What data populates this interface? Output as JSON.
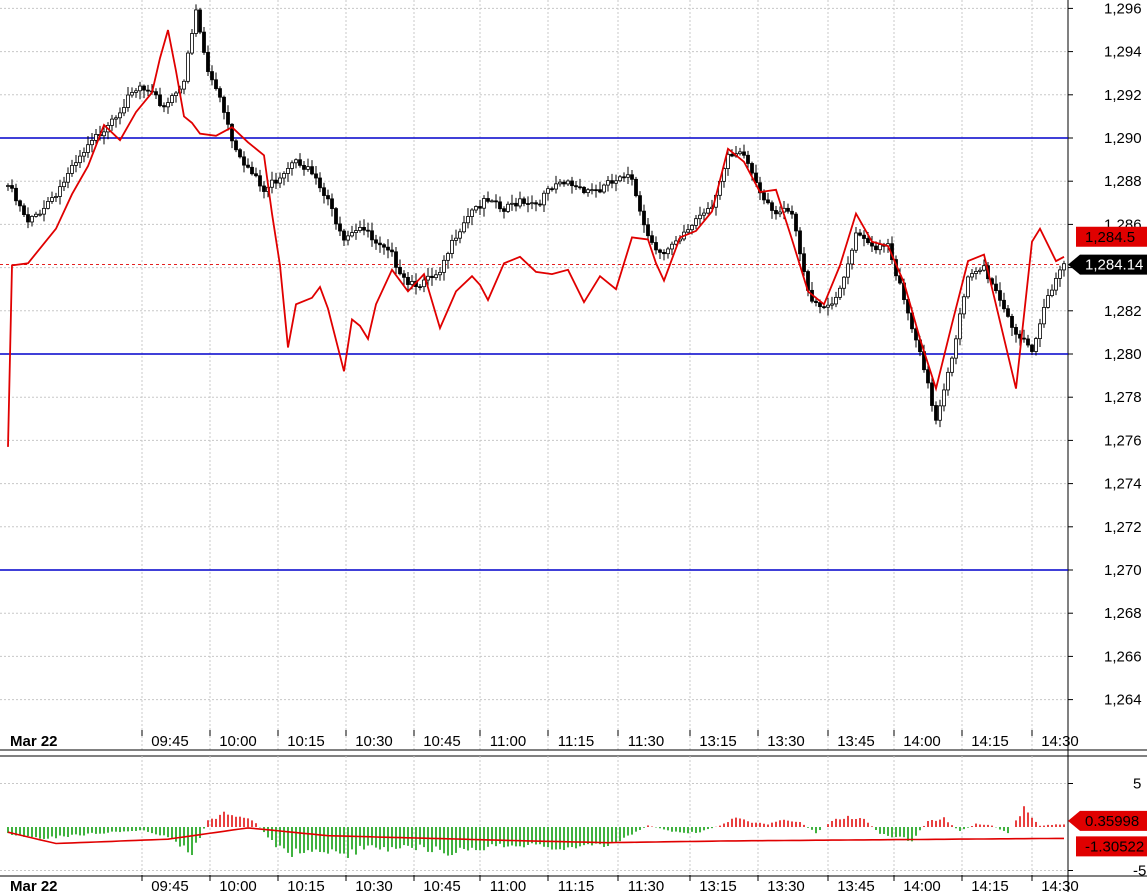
{
  "chart_data": [
    {
      "type": "candlestick",
      "date_label": "Mar 22",
      "x_ticks": [
        "09:45",
        "10:00",
        "10:15",
        "10:30",
        "10:45",
        "11:00",
        "11:15",
        "11:30",
        "13:15",
        "13:30",
        "13:45",
        "14:00",
        "14:15",
        "14:30"
      ],
      "y_ticks": [
        "1,264",
        "1,266",
        "1,268",
        "1,270",
        "1,272",
        "1,274",
        "1,276",
        "1,278",
        "1,280",
        "1,282",
        "1,284",
        "1,286",
        "1,288",
        "1,290",
        "1,292",
        "1,294",
        "1,296"
      ],
      "ylim": [
        1263.0,
        1296.5
      ],
      "grid": true,
      "horizontal_lines": [
        1290,
        1280,
        1270
      ],
      "current_price_label": "1,284.14",
      "current_price": 1284.14,
      "overlay_label": "1,284.5",
      "overlay_value": 1284.5,
      "candle_anchors": [
        [
          0,
          1287.8
        ],
        [
          5,
          1286.0
        ],
        [
          12,
          1287.5
        ],
        [
          20,
          1289.5
        ],
        [
          26,
          1291.0
        ],
        [
          33,
          1292.3
        ],
        [
          39,
          1291.5
        ],
        [
          44,
          1292.7
        ],
        [
          47,
          1295.8
        ],
        [
          50,
          1293.0
        ],
        [
          53,
          1292.0
        ],
        [
          56,
          1290.0
        ],
        [
          60,
          1288.6
        ],
        [
          64,
          1287.5
        ],
        [
          68,
          1288.3
        ],
        [
          72,
          1289.2
        ],
        [
          76,
          1288.3
        ],
        [
          80,
          1287.0
        ],
        [
          84,
          1285.5
        ],
        [
          88,
          1286.0
        ],
        [
          92,
          1285.0
        ],
        [
          96,
          1284.5
        ],
        [
          100,
          1283.4
        ],
        [
          104,
          1283.3
        ],
        [
          108,
          1283.6
        ],
        [
          112,
          1285.6
        ],
        [
          116,
          1286.8
        ],
        [
          120,
          1287.0
        ],
        [
          124,
          1286.6
        ],
        [
          128,
          1287.2
        ],
        [
          132,
          1287.0
        ],
        [
          136,
          1287.6
        ],
        [
          140,
          1287.9
        ],
        [
          144,
          1287.7
        ],
        [
          148,
          1287.6
        ],
        [
          152,
          1288.0
        ],
        [
          156,
          1288.1
        ],
        [
          160,
          1285.5
        ],
        [
          164,
          1284.6
        ],
        [
          168,
          1285.2
        ],
        [
          172,
          1286.3
        ],
        [
          176,
          1287.0
        ],
        [
          180,
          1289.0
        ],
        [
          184,
          1289.2
        ],
        [
          188,
          1287.6
        ],
        [
          192,
          1286.6
        ],
        [
          196,
          1286.4
        ],
        [
          200,
          1282.8
        ],
        [
          204,
          1282.2
        ],
        [
          208,
          1282.8
        ],
        [
          212,
          1285.4
        ],
        [
          216,
          1285.0
        ],
        [
          220,
          1285.2
        ],
        [
          224,
          1282.4
        ],
        [
          228,
          1279.9
        ],
        [
          232,
          1277.0
        ],
        [
          236,
          1280.0
        ],
        [
          240,
          1283.4
        ],
        [
          244,
          1284.0
        ],
        [
          248,
          1282.6
        ],
        [
          252,
          1281.0
        ],
        [
          256,
          1279.9
        ],
        [
          260,
          1282.8
        ],
        [
          262,
          1283.6
        ],
        [
          264,
          1284.2
        ]
      ],
      "series": [
        {
          "name": "",
          "color": "#e00000",
          "points": [
            [
              0,
              1275.7
            ],
            [
              1,
              1284.1
            ],
            [
              5,
              1284.2
            ],
            [
              12,
              1285.8
            ],
            [
              16,
              1287.4
            ],
            [
              20,
              1288.7
            ],
            [
              24,
              1290.6
            ],
            [
              28,
              1289.9
            ],
            [
              32,
              1291.2
            ],
            [
              36,
              1292.1
            ],
            [
              38,
              1293.7
            ],
            [
              40,
              1295.0
            ],
            [
              42,
              1293.1
            ],
            [
              44,
              1291.0
            ],
            [
              46,
              1290.7
            ],
            [
              48,
              1290.2
            ],
            [
              52,
              1290.1
            ],
            [
              56,
              1290.5
            ],
            [
              60,
              1289.8
            ],
            [
              64,
              1289.2
            ],
            [
              66,
              1286.5
            ],
            [
              68,
              1284.1
            ],
            [
              70,
              1280.3
            ],
            [
              72,
              1282.3
            ],
            [
              76,
              1282.6
            ],
            [
              78,
              1283.1
            ],
            [
              80,
              1282.1
            ],
            [
              84,
              1279.2
            ],
            [
              86,
              1281.6
            ],
            [
              88,
              1281.3
            ],
            [
              90,
              1280.7
            ],
            [
              92,
              1282.3
            ],
            [
              96,
              1283.9
            ],
            [
              100,
              1282.9
            ],
            [
              104,
              1283.7
            ],
            [
              108,
              1281.2
            ],
            [
              112,
              1282.9
            ],
            [
              116,
              1283.6
            ],
            [
              118,
              1283.2
            ],
            [
              120,
              1282.5
            ],
            [
              124,
              1284.2
            ],
            [
              128,
              1284.5
            ],
            [
              132,
              1283.8
            ],
            [
              136,
              1283.7
            ],
            [
              140,
              1283.9
            ],
            [
              144,
              1282.4
            ],
            [
              148,
              1283.6
            ],
            [
              152,
              1283.0
            ],
            [
              156,
              1285.4
            ],
            [
              160,
              1285.3
            ],
            [
              162,
              1284.2
            ],
            [
              164,
              1283.4
            ],
            [
              168,
              1285.4
            ],
            [
              172,
              1285.7
            ],
            [
              176,
              1286.6
            ],
            [
              180,
              1289.5
            ],
            [
              184,
              1288.9
            ],
            [
              188,
              1287.5
            ],
            [
              192,
              1287.6
            ],
            [
              196,
              1285.3
            ],
            [
              200,
              1282.9
            ],
            [
              204,
              1282.3
            ],
            [
              208,
              1284.1
            ],
            [
              212,
              1286.5
            ],
            [
              216,
              1285.2
            ],
            [
              220,
              1285.0
            ],
            [
              224,
              1283.3
            ],
            [
              228,
              1280.7
            ],
            [
              232,
              1278.4
            ],
            [
              236,
              1281.4
            ],
            [
              240,
              1284.3
            ],
            [
              244,
              1284.6
            ],
            [
              248,
              1281.5
            ],
            [
              252,
              1278.4
            ],
            [
              256,
              1285.2
            ],
            [
              258,
              1285.8
            ],
            [
              262,
              1284.3
            ],
            [
              264,
              1284.5
            ]
          ]
        }
      ]
    },
    {
      "type": "bar",
      "date_label": "Mar 22",
      "x_ticks": [
        "09:45",
        "10:00",
        "10:15",
        "10:30",
        "10:45",
        "11:00",
        "11:15",
        "11:30",
        "13:15",
        "13:30",
        "13:45",
        "14:00",
        "14:15",
        "14:30"
      ],
      "y_ticks": [
        "5",
        "-5"
      ],
      "ylim": [
        -6,
        7
      ],
      "grid": true,
      "zero_line": 0,
      "positive_color": "#e00000",
      "negative_color": "#009900",
      "latest_bar_label": "0.35998",
      "latest_bar_value": 0.35998,
      "signal_label": "-1.30522",
      "signal_value": -1.30522,
      "bar_anchors": [
        [
          0,
          -1.0
        ],
        [
          8,
          -1.4
        ],
        [
          16,
          -1.2
        ],
        [
          22,
          -0.9
        ],
        [
          28,
          -0.6
        ],
        [
          34,
          -0.4
        ],
        [
          40,
          -1.5
        ],
        [
          46,
          -3.4
        ],
        [
          50,
          0.8
        ],
        [
          54,
          1.8
        ],
        [
          58,
          1.4
        ],
        [
          62,
          0.6
        ],
        [
          66,
          -2.0
        ],
        [
          70,
          -3.8
        ],
        [
          76,
          -3.0
        ],
        [
          84,
          -3.8
        ],
        [
          90,
          -2.6
        ],
        [
          96,
          -3.0
        ],
        [
          104,
          -2.8
        ],
        [
          110,
          -3.4
        ],
        [
          118,
          -3.0
        ],
        [
          126,
          -2.2
        ],
        [
          134,
          -2.6
        ],
        [
          142,
          -3.0
        ],
        [
          150,
          -2.4
        ],
        [
          156,
          -1.0
        ],
        [
          160,
          0.2
        ],
        [
          166,
          -0.6
        ],
        [
          172,
          -0.8
        ],
        [
          178,
          0.2
        ],
        [
          182,
          1.2
        ],
        [
          186,
          0.6
        ],
        [
          190,
          0.4
        ],
        [
          194,
          1.0
        ],
        [
          198,
          0.6
        ],
        [
          202,
          -0.8
        ],
        [
          206,
          0.8
        ],
        [
          210,
          1.4
        ],
        [
          214,
          1.0
        ],
        [
          218,
          -0.8
        ],
        [
          222,
          -1.4
        ],
        [
          226,
          -1.8
        ],
        [
          230,
          0.8
        ],
        [
          234,
          1.2
        ],
        [
          238,
          -0.6
        ],
        [
          242,
          0.4
        ],
        [
          246,
          0.2
        ],
        [
          250,
          -0.8
        ],
        [
          254,
          2.4
        ],
        [
          258,
          0.2
        ],
        [
          264,
          0.36
        ]
      ],
      "signal_anchors": [
        [
          0,
          -0.6
        ],
        [
          12,
          -1.9
        ],
        [
          40,
          -1.4
        ],
        [
          60,
          -0.1
        ],
        [
          80,
          -1.0
        ],
        [
          130,
          -1.6
        ],
        [
          150,
          -1.8
        ],
        [
          180,
          -1.6
        ],
        [
          264,
          -1.305
        ]
      ]
    }
  ]
}
